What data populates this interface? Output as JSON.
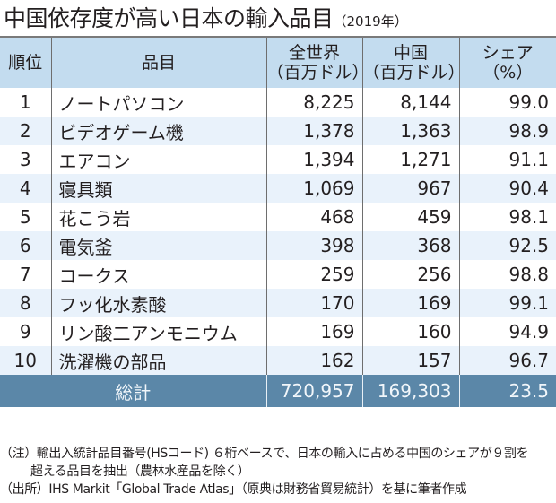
{
  "title": {
    "main": "中国依存度が高い日本の輸入品目",
    "year": "（2019年）"
  },
  "table": {
    "headers": {
      "rank": "順位",
      "item": "品目",
      "world": [
        "全世界",
        "（百万ドル）"
      ],
      "china": [
        "中国",
        "（百万ドル）"
      ],
      "share": [
        "シェア",
        "（%）"
      ]
    },
    "rows": [
      {
        "rank": "1",
        "item": "ノートパソコン",
        "world": "8,225",
        "china": "8,144",
        "share": "99.0"
      },
      {
        "rank": "2",
        "item": "ビデオゲーム機",
        "world": "1,378",
        "china": "1,363",
        "share": "98.9"
      },
      {
        "rank": "3",
        "item": "エアコン",
        "world": "1,394",
        "china": "1,271",
        "share": "91.1"
      },
      {
        "rank": "4",
        "item": "寝具類",
        "world": "1,069",
        "china": "967",
        "share": "90.4"
      },
      {
        "rank": "5",
        "item": "花こう岩",
        "world": "468",
        "china": "459",
        "share": "98.1"
      },
      {
        "rank": "6",
        "item": "電気釜",
        "world": "398",
        "china": "368",
        "share": "92.5"
      },
      {
        "rank": "7",
        "item": "コークス",
        "world": "259",
        "china": "256",
        "share": "98.8"
      },
      {
        "rank": "8",
        "item": "フッ化水素酸",
        "world": "170",
        "china": "169",
        "share": "99.1"
      },
      {
        "rank": "9",
        "item": "リン酸二アンモニウム",
        "world": "169",
        "china": "160",
        "share": "94.9"
      },
      {
        "rank": "10",
        "item": "洗濯機の部品",
        "world": "162",
        "china": "157",
        "share": "96.7"
      }
    ],
    "total": {
      "label": "総計",
      "world": "720,957",
      "china": "169,303",
      "share": "23.5"
    }
  },
  "notes": {
    "note_line1": "（注）輸出入統計品目番号(HSコード) ６桁ベースで、日本の輸入に占める中国のシェアが９割を",
    "note_line2": "超える品目を抽出（農林水産品を除く）",
    "source": "（出所）IHS Markit「Global Trade Atlas」（原典は財務省貿易統計）を基に筆者作成"
  },
  "colors": {
    "header_bg": "#c3dcef",
    "stripe_bg": "#e9f2fb",
    "total_bg": "#5b87a8"
  }
}
